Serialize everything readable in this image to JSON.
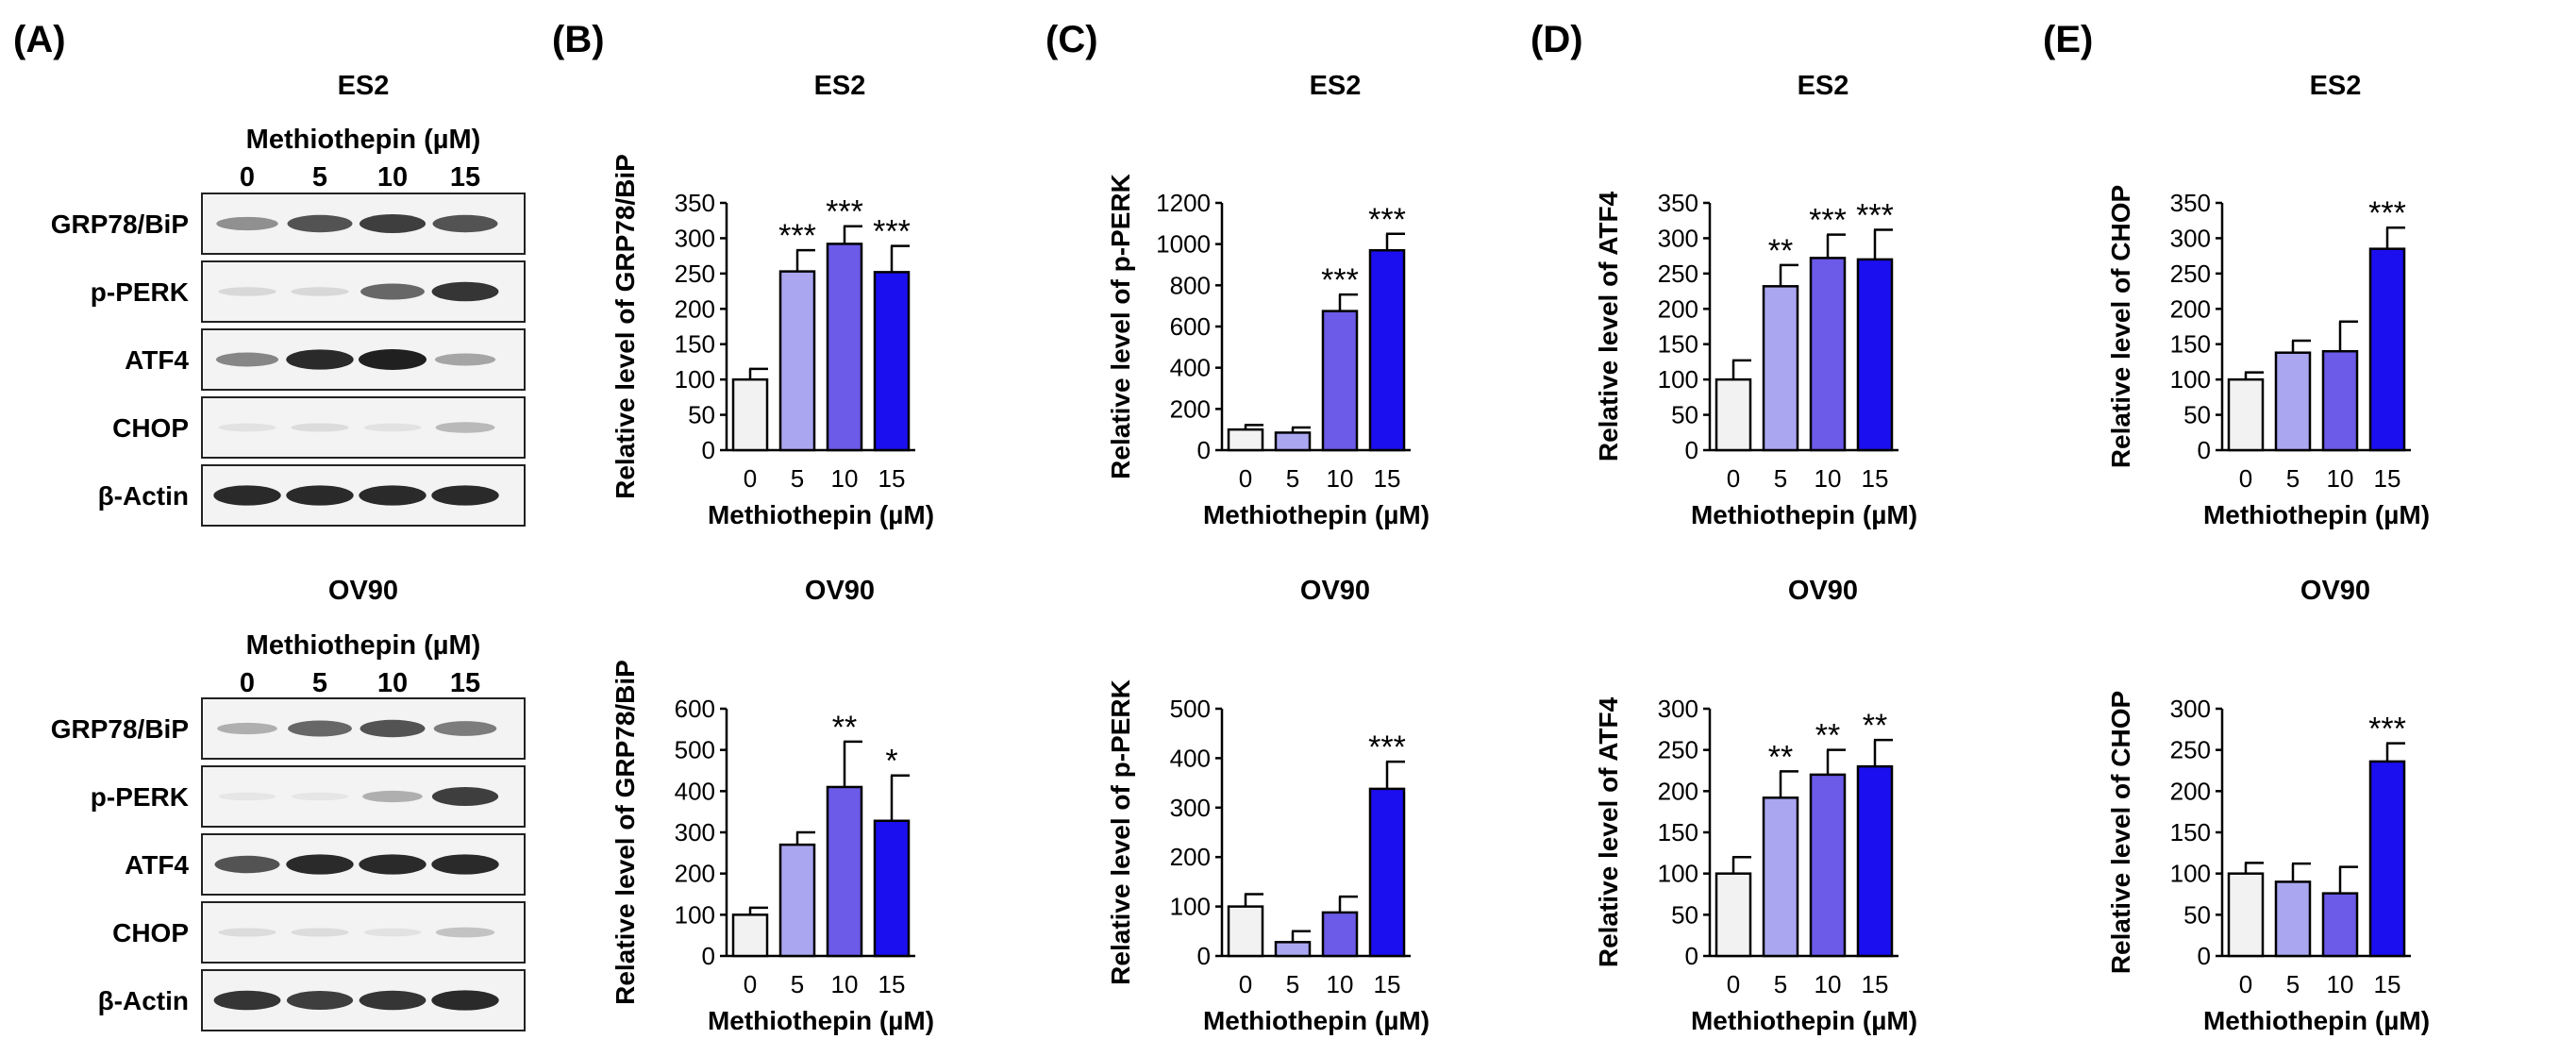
{
  "panel_labels": [
    "(A)",
    "(B)",
    "(C)",
    "(D)",
    "(E)"
  ],
  "blot": {
    "panels": [
      {
        "cell_line": "ES2",
        "treatment_label": "Methiothepin (µM)",
        "doses": [
          "0",
          "5",
          "10",
          "15"
        ],
        "rows": [
          {
            "label": "GRP78/BiP",
            "intensity": [
              0.45,
              0.75,
              0.85,
              0.75
            ]
          },
          {
            "label": "p-PERK",
            "intensity": [
              0.1,
              0.1,
              0.65,
              0.9
            ]
          },
          {
            "label": "ATF4",
            "intensity": [
              0.5,
              0.95,
              1.0,
              0.35
            ]
          },
          {
            "label": "CHOP",
            "intensity": [
              0.05,
              0.08,
              0.05,
              0.25
            ]
          },
          {
            "label": "β-Actin",
            "intensity": [
              0.95,
              0.95,
              0.95,
              0.95
            ]
          }
        ]
      },
      {
        "cell_line": "OV90",
        "treatment_label": "Methiothepin (µM)",
        "doses": [
          "0",
          "5",
          "10",
          "15"
        ],
        "rows": [
          {
            "label": "GRP78/BiP",
            "intensity": [
              0.3,
              0.65,
              0.75,
              0.55
            ]
          },
          {
            "label": "p-PERK",
            "intensity": [
              0.03,
              0.03,
              0.3,
              0.85
            ]
          },
          {
            "label": "ATF4",
            "intensity": [
              0.75,
              0.95,
              0.95,
              0.95
            ]
          },
          {
            "label": "CHOP",
            "intensity": [
              0.08,
              0.08,
              0.05,
              0.2
            ]
          },
          {
            "label": "β-Actin",
            "intensity": [
              0.9,
              0.85,
              0.9,
              0.95
            ]
          }
        ]
      }
    ]
  },
  "chart_data": [
    {
      "type": "bar",
      "panel": "B",
      "title": "ES2",
      "ylabel": "Relative level of GRP78/BiP",
      "xlabel": "Methiothepin (µM)",
      "categories": [
        "0",
        "5",
        "10",
        "15"
      ],
      "values": [
        100,
        253,
        292,
        252
      ],
      "errors": [
        15,
        30,
        25,
        37
      ],
      "significance": [
        "",
        "***",
        "***",
        "***"
      ],
      "ylim": [
        0,
        350
      ],
      "yticks": [
        0,
        50,
        100,
        150,
        200,
        250,
        300,
        350
      ],
      "colors": [
        "#f2f2f2",
        "#aaa6f0",
        "#6b5be8",
        "#1b0ff0"
      ]
    },
    {
      "type": "bar",
      "panel": "C",
      "title": "ES2",
      "ylabel": "Relative level of p-PERK",
      "xlabel": "Methiothepin (µM)",
      "categories": [
        "0",
        "5",
        "10",
        "15"
      ],
      "values": [
        100,
        85,
        675,
        970
      ],
      "errors": [
        22,
        25,
        80,
        80
      ],
      "significance": [
        "",
        "",
        "***",
        "***"
      ],
      "ylim": [
        0,
        1200
      ],
      "yticks": [
        0,
        200,
        400,
        600,
        800,
        1000,
        1200
      ],
      "colors": [
        "#f2f2f2",
        "#aaa6f0",
        "#6b5be8",
        "#1b0ff0"
      ]
    },
    {
      "type": "bar",
      "panel": "D",
      "title": "ES2",
      "ylabel": "Relative level of ATF4",
      "xlabel": "Methiothepin (µM)",
      "categories": [
        "0",
        "5",
        "10",
        "15"
      ],
      "values": [
        100,
        232,
        272,
        270
      ],
      "errors": [
        27,
        30,
        33,
        42
      ],
      "significance": [
        "",
        "**",
        "***",
        "***"
      ],
      "ylim": [
        0,
        350
      ],
      "yticks": [
        0,
        50,
        100,
        150,
        200,
        250,
        300,
        350
      ],
      "colors": [
        "#f2f2f2",
        "#aaa6f0",
        "#6b5be8",
        "#1b0ff0"
      ]
    },
    {
      "type": "bar",
      "panel": "E",
      "title": "ES2",
      "ylabel": "Relative level of CHOP",
      "xlabel": "Methiothepin (µM)",
      "categories": [
        "0",
        "5",
        "10",
        "15"
      ],
      "values": [
        100,
        138,
        140,
        285
      ],
      "errors": [
        10,
        17,
        42,
        30
      ],
      "significance": [
        "",
        "",
        "",
        "***"
      ],
      "ylim": [
        0,
        350
      ],
      "yticks": [
        0,
        50,
        100,
        150,
        200,
        250,
        300,
        350
      ],
      "colors": [
        "#f2f2f2",
        "#aaa6f0",
        "#6b5be8",
        "#1b0ff0"
      ]
    },
    {
      "type": "bar",
      "panel": "B",
      "title": "OV90",
      "ylabel": "Relative level of GRP78/BiP",
      "xlabel": "Methiothepin (µM)",
      "categories": [
        "0",
        "5",
        "10",
        "15"
      ],
      "values": [
        100,
        270,
        410,
        328
      ],
      "errors": [
        17,
        30,
        110,
        110
      ],
      "significance": [
        "",
        "",
        "**",
        "*"
      ],
      "ylim": [
        0,
        600
      ],
      "yticks": [
        0,
        100,
        200,
        300,
        400,
        500,
        600
      ],
      "colors": [
        "#f2f2f2",
        "#aaa6f0",
        "#6b5be8",
        "#1b0ff0"
      ]
    },
    {
      "type": "bar",
      "panel": "C",
      "title": "OV90",
      "ylabel": "Relative level of p-PERK",
      "xlabel": "Methiothepin (µM)",
      "categories": [
        "0",
        "5",
        "10",
        "15"
      ],
      "values": [
        100,
        28,
        88,
        338
      ],
      "errors": [
        25,
        22,
        32,
        55
      ],
      "significance": [
        "",
        "",
        "",
        "***"
      ],
      "ylim": [
        0,
        500
      ],
      "yticks": [
        0,
        100,
        200,
        300,
        400,
        500
      ],
      "colors": [
        "#f2f2f2",
        "#aaa6f0",
        "#6b5be8",
        "#1b0ff0"
      ]
    },
    {
      "type": "bar",
      "panel": "D",
      "title": "OV90",
      "ylabel": "Relative level of ATF4",
      "xlabel": "Methiothepin (µM)",
      "categories": [
        "0",
        "5",
        "10",
        "15"
      ],
      "values": [
        100,
        192,
        220,
        230
      ],
      "errors": [
        20,
        32,
        30,
        32
      ],
      "significance": [
        "",
        "**",
        "**",
        "**"
      ],
      "ylim": [
        0,
        300
      ],
      "yticks": [
        0,
        50,
        100,
        150,
        200,
        250,
        300
      ],
      "colors": [
        "#f2f2f2",
        "#aaa6f0",
        "#6b5be8",
        "#1b0ff0"
      ]
    },
    {
      "type": "bar",
      "panel": "E",
      "title": "OV90",
      "ylabel": "Relative level of CHOP",
      "xlabel": "Methiothepin (µM)",
      "categories": [
        "0",
        "5",
        "10",
        "15"
      ],
      "values": [
        100,
        90,
        76,
        236
      ],
      "errors": [
        13,
        22,
        32,
        22
      ],
      "significance": [
        "",
        "",
        "",
        "***"
      ],
      "ylim": [
        0,
        300
      ],
      "yticks": [
        0,
        50,
        100,
        150,
        200,
        250,
        300
      ],
      "colors": [
        "#f2f2f2",
        "#aaa6f0",
        "#6b5be8",
        "#1b0ff0"
      ]
    }
  ]
}
